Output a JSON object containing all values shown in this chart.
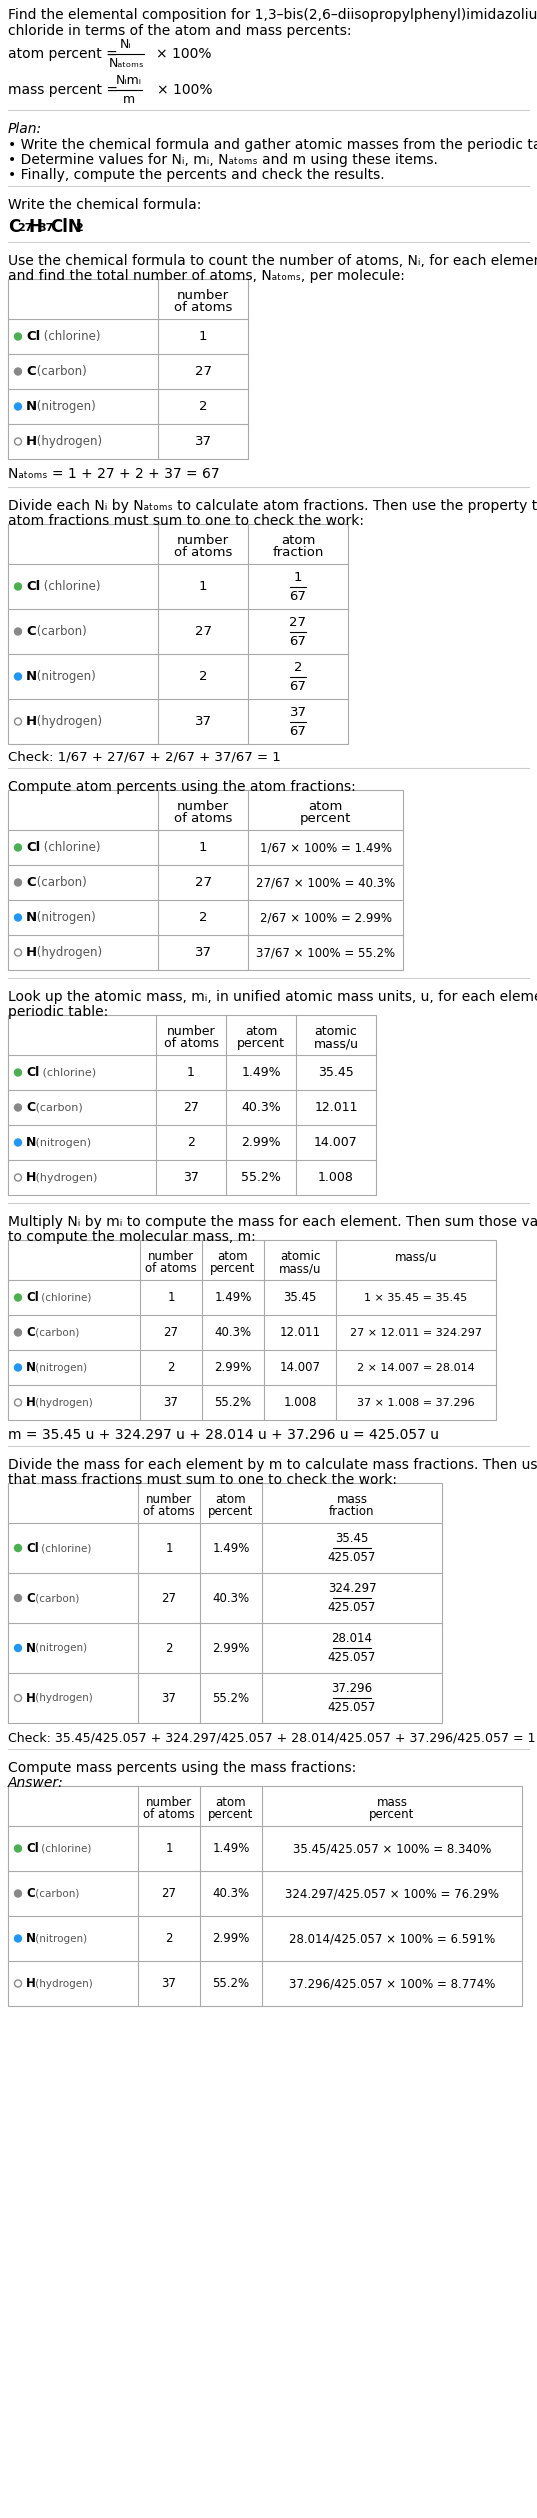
{
  "bg_color": "#FFFFFF",
  "text_color": "#000000",
  "gray_text": "#555555",
  "table_border_color": "#AAAAAA",
  "section_line_color": "#CCCCCC",
  "element_colors": [
    "#4CAF50",
    "#888888",
    "#2196F3",
    "#FFFFFF"
  ],
  "elements": [
    "Cl (chlorine)",
    "C (carbon)",
    "N (nitrogen)",
    "H (hydrogen)"
  ],
  "n_atoms": [
    "1",
    "27",
    "2",
    "37"
  ],
  "n_atoms_total_str": "Nₐₜₒₘₛ = 1 + 27 + 2 + 37 = 67",
  "atom_fractions_num": [
    "1",
    "27",
    "2",
    "37"
  ],
  "atom_fractions_den": "67",
  "atom_percents": [
    "1.49%",
    "40.3%",
    "2.99%",
    "55.2%"
  ],
  "atom_percent_exprs": [
    "1/67 × 100% = 1.49%",
    "27/67 × 100% = 40.3%",
    "2/67 × 100% = 2.99%",
    "37/67 × 100% = 55.2%"
  ],
  "atomic_masses": [
    "35.45",
    "12.011",
    "14.007",
    "1.008"
  ],
  "mass_exprs": [
    "1 × 35.45 = 35.45",
    "27 × 12.011 = 324.297",
    "2 × 14.007 = 28.014",
    "37 × 1.008 = 37.296"
  ],
  "mass_fractions_num": [
    "35.45",
    "324.297",
    "28.014",
    "37.296"
  ],
  "mass_fractions_den": "425.057",
  "mass_percent_exprs": [
    "35.45/425.057 × 100% = 8.340%",
    "324.297/425.057 × 100% = 76.29%",
    "28.014/425.057 × 100% = 6.591%",
    "37.296/425.057 × 100% = 8.774%"
  ],
  "mol_mass_str": "m = 35.45 u + 324.297 u + 28.014 u + 37.296 u = 425.057 u",
  "check_fracs": "Check: 1/67 + 27/67 + 2/67 + 37/67 = 1",
  "check_mass_fracs": "Check: 35.45/425.057 + 324.297/425.057 + 28.014/425.057 + 37.296/425.057 = 1"
}
